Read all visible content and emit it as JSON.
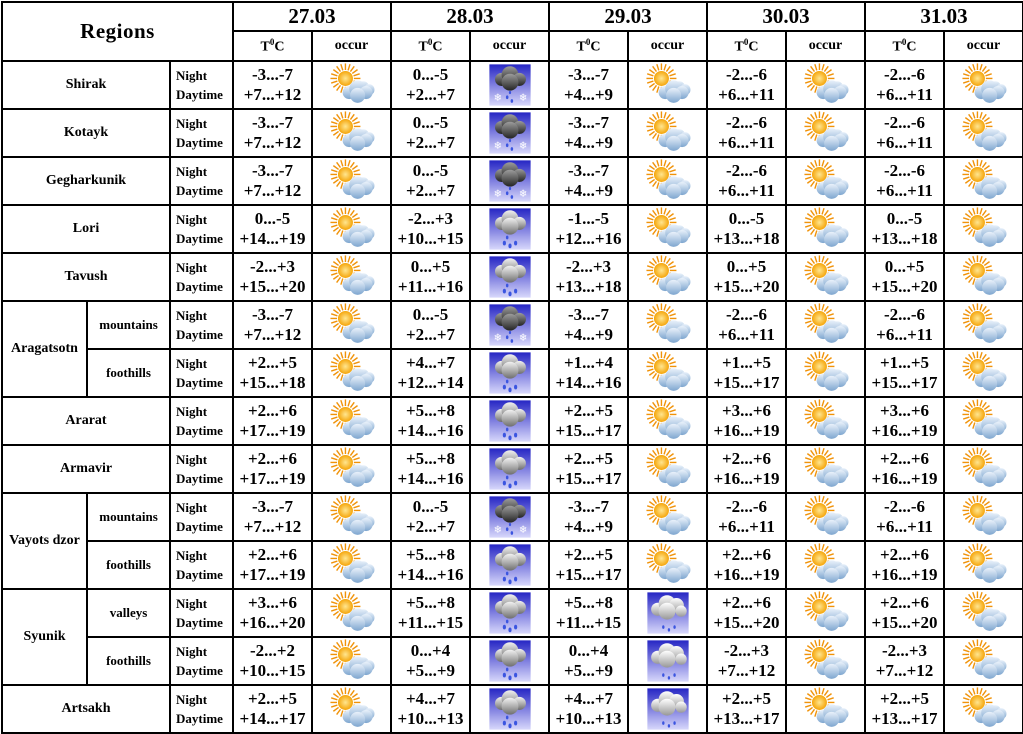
{
  "table": {
    "regions_header": "Regions",
    "dates": [
      "27.03",
      "28.03",
      "29.03",
      "30.03",
      "31.03"
    ],
    "temp_header": {
      "pre": "T",
      "sup": "0",
      "post": "C"
    },
    "occur_header": "occur",
    "night_label": "Night",
    "daytime_label": "Daytime",
    "icons": {
      "sun-cloud": "partly cloudy - sun behind cloud",
      "sleet": "dark cloud with snowflakes and rain drops on blue sky",
      "rain": "grey cloud with rain drops on blue sky",
      "showers": "white clouds with rain drops on blue sky"
    },
    "colors": {
      "border": "#000000",
      "background": "#ffffff",
      "sky_top": "#2626c4",
      "sky_bottom": "#d8d8fb",
      "sun": "#f5a50a",
      "cloud_blue": "#7ea6cf",
      "drop_blue": "#3b55e0"
    },
    "rows": [
      {
        "region": "Shirak",
        "region_colspan": 2,
        "days": [
          {
            "night": "-3...-7",
            "day": "+7...+12",
            "icon": "sun-cloud"
          },
          {
            "night": "0...-5",
            "day": "+2...+7",
            "icon": "sleet"
          },
          {
            "night": "-3...-7",
            "day": "+4...+9",
            "icon": "sun-cloud"
          },
          {
            "night": "-2...-6",
            "day": "+6...+11",
            "icon": "sun-cloud"
          },
          {
            "night": "-2...-6",
            "day": "+6...+11",
            "icon": "sun-cloud"
          }
        ]
      },
      {
        "region": "Kotayk",
        "region_colspan": 2,
        "days": [
          {
            "night": "-3...-7",
            "day": "+7...+12",
            "icon": "sun-cloud"
          },
          {
            "night": "0...-5",
            "day": "+2...+7",
            "icon": "sleet"
          },
          {
            "night": "-3...-7",
            "day": "+4...+9",
            "icon": "sun-cloud"
          },
          {
            "night": "-2...-6",
            "day": "+6...+11",
            "icon": "sun-cloud"
          },
          {
            "night": "-2...-6",
            "day": "+6...+11",
            "icon": "sun-cloud"
          }
        ]
      },
      {
        "region": "Gegharkunik",
        "region_colspan": 2,
        "days": [
          {
            "night": "-3...-7",
            "day": "+7...+12",
            "icon": "sun-cloud"
          },
          {
            "night": "0...-5",
            "day": "+2...+7",
            "icon": "sleet"
          },
          {
            "night": "-3...-7",
            "day": "+4...+9",
            "icon": "sun-cloud"
          },
          {
            "night": "-2...-6",
            "day": "+6...+11",
            "icon": "sun-cloud"
          },
          {
            "night": "-2...-6",
            "day": "+6...+11",
            "icon": "sun-cloud"
          }
        ]
      },
      {
        "region": "Lori",
        "region_colspan": 2,
        "days": [
          {
            "night": "0...-5",
            "day": "+14...+19",
            "icon": "sun-cloud"
          },
          {
            "night": "-2...+3",
            "day": "+10...+15",
            "icon": "rain"
          },
          {
            "night": "-1...-5",
            "day": "+12...+16",
            "icon": "sun-cloud"
          },
          {
            "night": "0...-5",
            "day": "+13...+18",
            "icon": "sun-cloud"
          },
          {
            "night": "0...-5",
            "day": "+13...+18",
            "icon": "sun-cloud"
          }
        ]
      },
      {
        "region": "Tavush",
        "region_colspan": 2,
        "days": [
          {
            "night": "-2...+3",
            "day": "+15...+20",
            "icon": "sun-cloud"
          },
          {
            "night": "0...+5",
            "day": "+11...+16",
            "icon": "rain"
          },
          {
            "night": "-2...+3",
            "day": "+13...+18",
            "icon": "sun-cloud"
          },
          {
            "night": "0...+5",
            "day": "+15...+20",
            "icon": "sun-cloud"
          },
          {
            "night": "0...+5",
            "day": "+15...+20",
            "icon": "sun-cloud"
          }
        ]
      },
      {
        "region": "Aragatsotn",
        "region_rowspan": 2,
        "subregion": "mountains",
        "days": [
          {
            "night": "-3...-7",
            "day": "+7...+12",
            "icon": "sun-cloud"
          },
          {
            "night": "0...-5",
            "day": "+2...+7",
            "icon": "sleet"
          },
          {
            "night": "-3...-7",
            "day": "+4...+9",
            "icon": "sun-cloud"
          },
          {
            "night": "-2...-6",
            "day": "+6...+11",
            "icon": "sun-cloud"
          },
          {
            "night": "-2...-6",
            "day": "+6...+11",
            "icon": "sun-cloud"
          }
        ]
      },
      {
        "subregion": "foothills",
        "days": [
          {
            "night": "+2...+5",
            "day": "+15...+18",
            "icon": "sun-cloud"
          },
          {
            "night": "+4...+7",
            "day": "+12...+14",
            "icon": "rain"
          },
          {
            "night": "+1...+4",
            "day": "+14...+16",
            "icon": "sun-cloud"
          },
          {
            "night": "+1...+5",
            "day": "+15...+17",
            "icon": "sun-cloud"
          },
          {
            "night": "+1...+5",
            "day": "+15...+17",
            "icon": "sun-cloud"
          }
        ]
      },
      {
        "region": "Ararat",
        "region_colspan": 2,
        "days": [
          {
            "night": "+2...+6",
            "day": "+17...+19",
            "icon": "sun-cloud"
          },
          {
            "night": "+5...+8",
            "day": "+14...+16",
            "icon": "rain"
          },
          {
            "night": "+2...+5",
            "day": "+15...+17",
            "icon": "sun-cloud"
          },
          {
            "night": "+3...+6",
            "day": "+16...+19",
            "icon": "sun-cloud"
          },
          {
            "night": "+3...+6",
            "day": "+16...+19",
            "icon": "sun-cloud"
          }
        ]
      },
      {
        "region": "Armavir",
        "region_colspan": 2,
        "days": [
          {
            "night": "+2...+6",
            "day": "+17...+19",
            "icon": "sun-cloud"
          },
          {
            "night": "+5...+8",
            "day": "+14...+16",
            "icon": "rain"
          },
          {
            "night": "+2...+5",
            "day": "+15...+17",
            "icon": "sun-cloud"
          },
          {
            "night": "+2...+6",
            "day": "+16...+19",
            "icon": "sun-cloud"
          },
          {
            "night": "+2...+6",
            "day": "+16...+19",
            "icon": "sun-cloud"
          }
        ]
      },
      {
        "region": "Vayots dzor",
        "region_rowspan": 2,
        "subregion": "mountains",
        "days": [
          {
            "night": "-3...-7",
            "day": "+7...+12",
            "icon": "sun-cloud"
          },
          {
            "night": "0...-5",
            "day": "+2...+7",
            "icon": "sleet"
          },
          {
            "night": "-3...-7",
            "day": "+4...+9",
            "icon": "sun-cloud"
          },
          {
            "night": "-2...-6",
            "day": "+6...+11",
            "icon": "sun-cloud"
          },
          {
            "night": "-2...-6",
            "day": "+6...+11",
            "icon": "sun-cloud"
          }
        ]
      },
      {
        "subregion": "foothills",
        "days": [
          {
            "night": "+2...+6",
            "day": "+17...+19",
            "icon": "sun-cloud"
          },
          {
            "night": "+5...+8",
            "day": "+14...+16",
            "icon": "rain"
          },
          {
            "night": "+2...+5",
            "day": "+15...+17",
            "icon": "sun-cloud"
          },
          {
            "night": "+2...+6",
            "day": "+16...+19",
            "icon": "sun-cloud"
          },
          {
            "night": "+2...+6",
            "day": "+16...+19",
            "icon": "sun-cloud"
          }
        ]
      },
      {
        "region": "Syunik",
        "region_rowspan": 2,
        "subregion": "valleys",
        "days": [
          {
            "night": "+3...+6",
            "day": "+16...+20",
            "icon": "sun-cloud"
          },
          {
            "night": "+5...+8",
            "day": "+11...+15",
            "icon": "rain"
          },
          {
            "night": "+5...+8",
            "day": "+11...+15",
            "icon": "showers"
          },
          {
            "night": "+2...+6",
            "day": "+15...+20",
            "icon": "sun-cloud"
          },
          {
            "night": "+2...+6",
            "day": "+15...+20",
            "icon": "sun-cloud"
          }
        ]
      },
      {
        "subregion": "foothills",
        "days": [
          {
            "night": "-2...+2",
            "day": "+10...+15",
            "icon": "sun-cloud"
          },
          {
            "night": "0...+4",
            "day": "+5...+9",
            "icon": "rain"
          },
          {
            "night": "0...+4",
            "day": "+5...+9",
            "icon": "showers"
          },
          {
            "night": "-2...+3",
            "day": "+7...+12",
            "icon": "sun-cloud"
          },
          {
            "night": "-2...+3",
            "day": "+7...+12",
            "icon": "sun-cloud"
          }
        ]
      },
      {
        "region": "Artsakh",
        "region_colspan": 2,
        "days": [
          {
            "night": "+2...+5",
            "day": "+14...+17",
            "icon": "sun-cloud"
          },
          {
            "night": "+4...+7",
            "day": "+10...+13",
            "icon": "rain"
          },
          {
            "night": "+4...+7",
            "day": "+10...+13",
            "icon": "showers"
          },
          {
            "night": "+2...+5",
            "day": "+13...+17",
            "icon": "sun-cloud"
          },
          {
            "night": "+2...+5",
            "day": "+13...+17",
            "icon": "sun-cloud"
          }
        ]
      }
    ]
  }
}
